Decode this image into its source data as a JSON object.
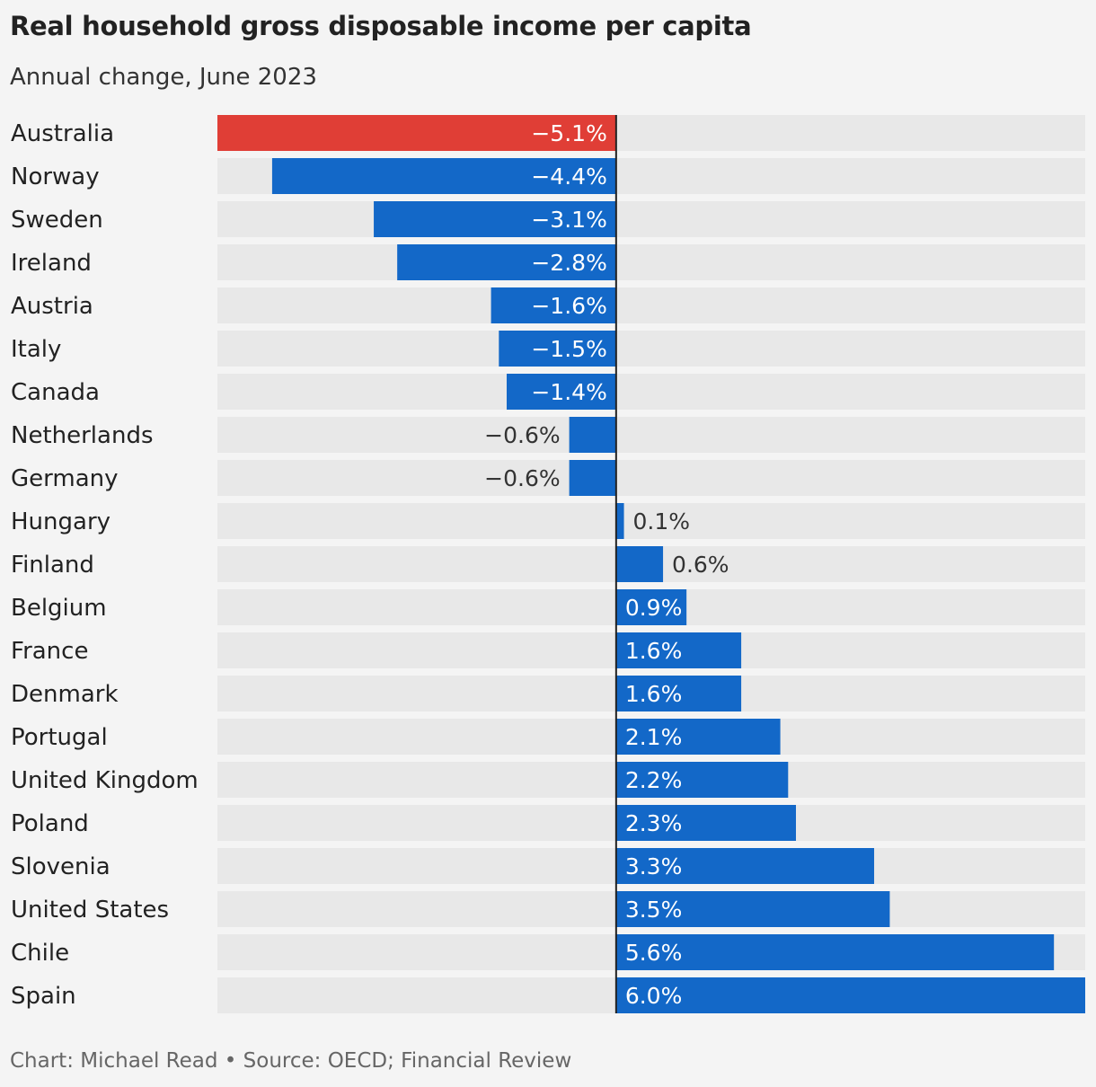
{
  "chart_data": {
    "type": "bar",
    "orientation": "horizontal",
    "title": "Real household gross disposable income per capita",
    "subtitle": "Annual change, June 2023",
    "source": "Chart: Michael Read • Source: OECD; Financial Review",
    "categories": [
      "Australia",
      "Norway",
      "Sweden",
      "Ireland",
      "Austria",
      "Italy",
      "Canada",
      "Netherlands",
      "Germany",
      "Hungary",
      "Finland",
      "Belgium",
      "France",
      "Denmark",
      "Portugal",
      "United Kingdom",
      "Poland",
      "Slovenia",
      "United States",
      "Chile",
      "Spain"
    ],
    "values": [
      -5.1,
      -4.4,
      -3.1,
      -2.8,
      -1.6,
      -1.5,
      -1.4,
      -0.6,
      -0.6,
      0.1,
      0.6,
      0.9,
      1.6,
      1.6,
      2.1,
      2.2,
      2.3,
      3.3,
      3.5,
      5.6,
      6.0
    ],
    "labels": [
      "−5.1%",
      "−4.4%",
      "−3.1%",
      "−2.8%",
      "−1.6%",
      "−1.5%",
      "−1.4%",
      "−0.6%",
      "−0.6%",
      "0.1%",
      "0.6%",
      "0.9%",
      "1.6%",
      "1.6%",
      "2.1%",
      "2.2%",
      "2.3%",
      "3.3%",
      "3.5%",
      "5.6%",
      "6.0%"
    ],
    "highlight": "Australia",
    "xlim": [
      -5.1,
      6.0
    ],
    "xlabel": "",
    "ylabel": "",
    "grid": false,
    "colors": {
      "bar": "#1368c8",
      "highlight": "#e03e36",
      "track": "#e8e8e8",
      "axis": "#222222",
      "label_inside": "#ffffff",
      "label_outside": "#333333"
    }
  }
}
